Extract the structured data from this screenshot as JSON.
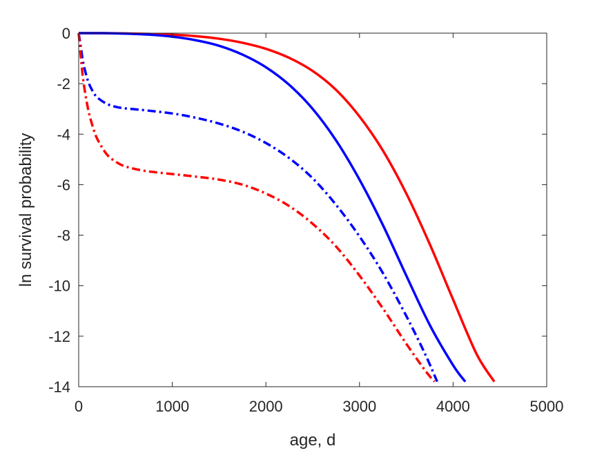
{
  "chart_data": {
    "type": "line",
    "xlabel": "age, d",
    "ylabel": "ln survival probability",
    "xlim": [
      0,
      5000
    ],
    "ylim": [
      -14,
      0
    ],
    "xticks": [
      0,
      1000,
      2000,
      3000,
      4000,
      5000
    ],
    "yticks": [
      0,
      -2,
      -4,
      -6,
      -8,
      -10,
      -12,
      -14
    ],
    "grid": false,
    "legend": "none",
    "series": [
      {
        "color": "#ff0000",
        "style": "solid",
        "x": [
          0,
          250,
          500,
          750,
          1000,
          1250,
          1500,
          1750,
          2000,
          2250,
          2500,
          2750,
          3000,
          3250,
          3500,
          3750,
          4000,
          4250,
          4440
        ],
        "y": [
          0,
          0,
          -0.01,
          -0.03,
          -0.06,
          -0.12,
          -0.22,
          -0.38,
          -0.62,
          -0.98,
          -1.5,
          -2.25,
          -3.3,
          -4.65,
          -6.35,
          -8.35,
          -10.55,
          -12.7,
          -13.8
        ]
      },
      {
        "color": "#0000ff",
        "style": "solid",
        "x": [
          0,
          250,
          500,
          750,
          1000,
          1250,
          1500,
          1750,
          2000,
          2250,
          2500,
          2750,
          3000,
          3250,
          3500,
          3750,
          4000,
          4130
        ],
        "y": [
          0,
          0,
          -0.02,
          -0.06,
          -0.14,
          -0.28,
          -0.5,
          -0.85,
          -1.35,
          -2.05,
          -3.0,
          -4.25,
          -5.8,
          -7.6,
          -9.6,
          -11.55,
          -13.15,
          -13.8
        ]
      },
      {
        "color": "#0000ff",
        "style": "dashdot",
        "x": [
          0,
          25,
          50,
          100,
          150,
          200,
          300,
          400,
          500,
          700,
          1000,
          1250,
          1500,
          1750,
          2000,
          2250,
          2500,
          2750,
          3000,
          3250,
          3500,
          3700,
          3830
        ],
        "y": [
          0,
          -0.6,
          -1.2,
          -1.9,
          -2.3,
          -2.55,
          -2.8,
          -2.92,
          -2.98,
          -3.05,
          -3.18,
          -3.35,
          -3.58,
          -3.9,
          -4.35,
          -4.95,
          -5.75,
          -6.8,
          -8.05,
          -9.5,
          -11.2,
          -12.7,
          -13.8
        ]
      },
      {
        "color": "#ff0000",
        "style": "dashdot",
        "x": [
          0,
          25,
          50,
          100,
          150,
          200,
          300,
          400,
          500,
          700,
          1000,
          1250,
          1500,
          1750,
          2000,
          2250,
          2500,
          2750,
          3000,
          3250,
          3500,
          3700,
          3800
        ],
        "y": [
          0,
          -1.0,
          -1.9,
          -3.0,
          -3.7,
          -4.2,
          -4.8,
          -5.1,
          -5.28,
          -5.45,
          -5.58,
          -5.68,
          -5.8,
          -6.0,
          -6.35,
          -6.85,
          -7.55,
          -8.45,
          -9.6,
          -10.9,
          -12.3,
          -13.35,
          -13.8
        ]
      }
    ]
  }
}
